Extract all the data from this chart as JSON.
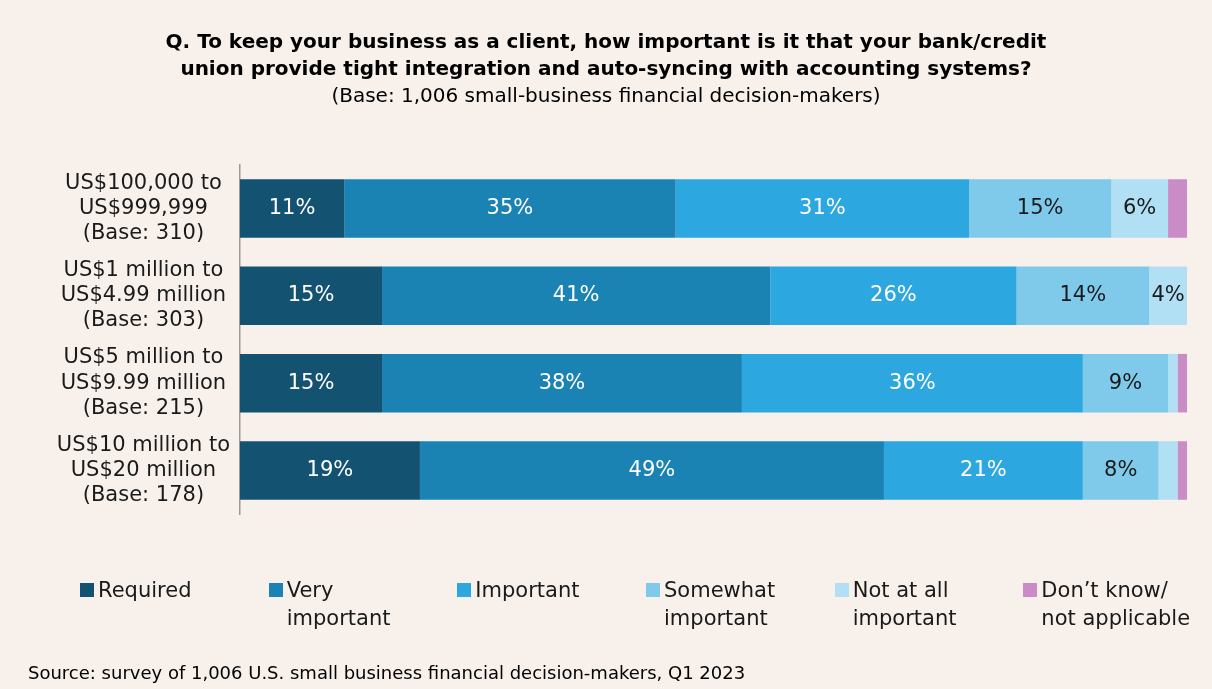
{
  "chart_data": {
    "type": "bar",
    "orientation": "horizontal",
    "stacked": true,
    "title": "Q. To keep your business as a client, how important is it that your bank/credit union provide tight integration and auto-syncing with accounting systems?",
    "subtitle": "(Base: 1,006 small-business financial decision-makers)",
    "annotations": [
      "Source: survey of 1,006 U.S. small business financial decision-makers, Q1 2023"
    ],
    "categories": [
      "US$100,000 to US$999,999 (Base: 310)",
      "US$1 million to US$4.99 million (Base: 303)",
      "US$5 million to US$9.99 million (Base: 215)",
      "US$10 million to US$20 million (Base: 178)"
    ],
    "series": [
      {
        "name": "Required",
        "color": "#135270",
        "values": [
          11,
          15,
          15,
          19
        ],
        "value_labels": [
          "11%",
          "15%",
          "15%",
          "19%"
        ]
      },
      {
        "name": "Very important",
        "color": "#1a83b3",
        "values": [
          35,
          41,
          38,
          49
        ],
        "value_labels": [
          "35%",
          "41%",
          "38%",
          "49%"
        ]
      },
      {
        "name": "Important",
        "color": "#2ca7e0",
        "values": [
          31,
          26,
          36,
          21
        ],
        "value_labels": [
          "31%",
          "26%",
          "36%",
          "21%"
        ]
      },
      {
        "name": "Somewhat important",
        "color": "#7fcaeb",
        "values": [
          15,
          14,
          9,
          8
        ],
        "value_labels": [
          "15%",
          "14%",
          "9%",
          "8%"
        ]
      },
      {
        "name": "Not at all important",
        "color": "#b1dff3",
        "values": [
          6,
          4,
          1,
          2
        ],
        "value_labels": [
          "6%",
          "4%",
          null,
          null
        ]
      },
      {
        "name": "Don’t know/ not applicable",
        "color": "#c98cc6",
        "values": [
          2,
          0,
          1,
          1
        ],
        "value_labels": [
          null,
          null,
          null,
          null
        ]
      }
    ],
    "legend": "bottom",
    "grid": false
  }
}
